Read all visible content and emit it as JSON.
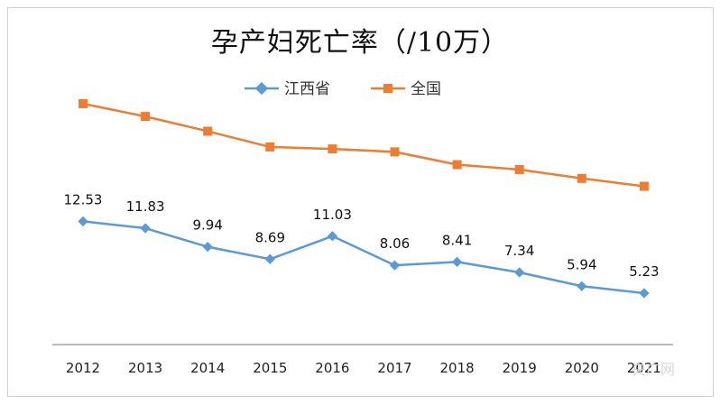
{
  "chart_data": {
    "type": "line",
    "title": "孕产妇死亡率（/10万）",
    "categories": [
      "2012",
      "2013",
      "2014",
      "2015",
      "2016",
      "2017",
      "2018",
      "2019",
      "2020",
      "2021"
    ],
    "series": [
      {
        "name": "江西省",
        "color": "#5b9bd5",
        "marker": "diamond",
        "values": [
          12.53,
          11.83,
          9.94,
          8.69,
          11.03,
          8.06,
          8.41,
          7.34,
          5.94,
          5.23
        ],
        "labels": [
          "12.53",
          "11.83",
          "9.94",
          "8.69",
          "11.03",
          "8.06",
          "8.41",
          "7.34",
          "5.94",
          "5.23"
        ]
      },
      {
        "name": "全国",
        "color": "#ed7d31",
        "marker": "square",
        "values": [
          24.5,
          23.2,
          21.7,
          20.1,
          19.9,
          19.6,
          18.3,
          17.8,
          16.9,
          16.1
        ],
        "labels": []
      }
    ],
    "ylim": [
      0,
      30
    ],
    "legend": "top-center",
    "grid": false
  },
  "watermark": "央广网"
}
